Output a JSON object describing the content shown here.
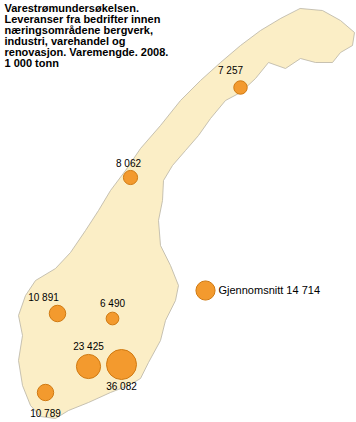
{
  "chart_data": {
    "type": "bubble",
    "title": "Varestrømundersøkelsen. Leveranser fra bedrifter innen næringsområdene bergverk, industri, varehandel og renovasjon. Varemengde. 2008. 1 000 tonn",
    "values": [
      7257,
      8062,
      10891,
      6490,
      23425,
      36082,
      10789
    ],
    "value_labels": [
      "7 257",
      "8 062",
      "10 891",
      "6 490",
      "23 425",
      "36 082",
      "10 789"
    ],
    "data_labels": true,
    "color": "#f39a2e",
    "reference": {
      "name": "Gjennomsnitt",
      "value": 14714,
      "value_label": "14 714"
    }
  }
}
